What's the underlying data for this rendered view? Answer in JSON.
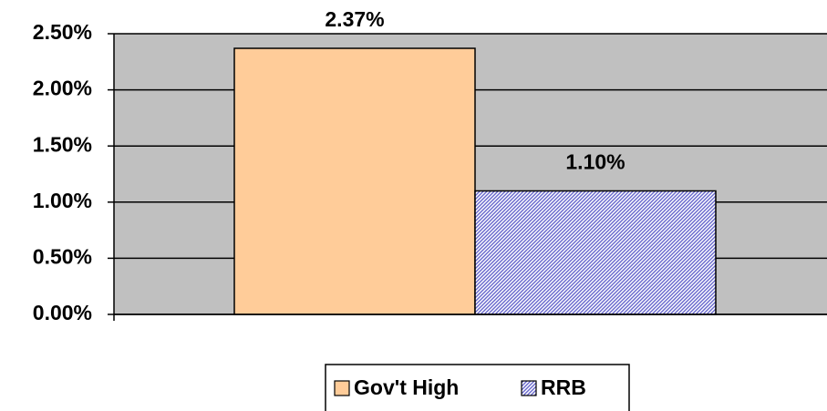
{
  "chart_data": {
    "type": "bar",
    "categories": [
      null
    ],
    "series": [
      {
        "name": "Gov't High",
        "color": "#ffcc99",
        "values": [
          2.37
        ],
        "value_labels": [
          "2.37%"
        ]
      },
      {
        "name": "RRB",
        "color": "#9999ff",
        "hatch": true,
        "values": [
          1.1
        ],
        "value_labels": [
          "1.10%"
        ]
      }
    ],
    "ylim": [
      0,
      2.5
    ],
    "yticks": [
      {
        "value": 0,
        "label": "0.00%"
      },
      {
        "value": 0.5,
        "label": "0.50%"
      },
      {
        "value": 1.0,
        "label": "1.00%"
      },
      {
        "value": 1.5,
        "label": "1.50%"
      },
      {
        "value": 2.0,
        "label": "2.00%"
      },
      {
        "value": 2.5,
        "label": "2.50%"
      }
    ],
    "grid": true,
    "legend": "bottom",
    "plot_background": "#c0c0c0"
  }
}
